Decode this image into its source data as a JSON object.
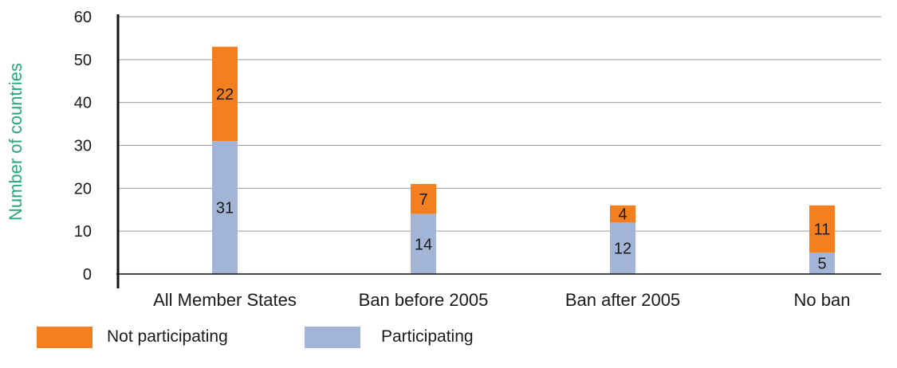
{
  "chart_data": {
    "type": "bar",
    "stacked": true,
    "title": "",
    "xlabel": "",
    "ylabel": "Number of countries",
    "ylabel_color": "#2aa67a",
    "ylim": [
      0,
      60
    ],
    "yticks": [
      0,
      10,
      20,
      30,
      40,
      50,
      60
    ],
    "grid": true,
    "legend_position": "bottom-left",
    "categories": [
      "All Member States",
      "Ban before 2005",
      "Ban after 2005",
      "No ban"
    ],
    "series": [
      {
        "name": "Participating",
        "color": "#a3b5d6",
        "values": [
          31,
          14,
          12,
          5
        ]
      },
      {
        "name": "Not participating",
        "color": "#f47f20",
        "values": [
          22,
          7,
          4,
          11
        ]
      }
    ],
    "legend": [
      {
        "name": "Not participating",
        "color": "#f47f20"
      },
      {
        "name": "Participating",
        "color": "#a3b5d6"
      }
    ]
  }
}
